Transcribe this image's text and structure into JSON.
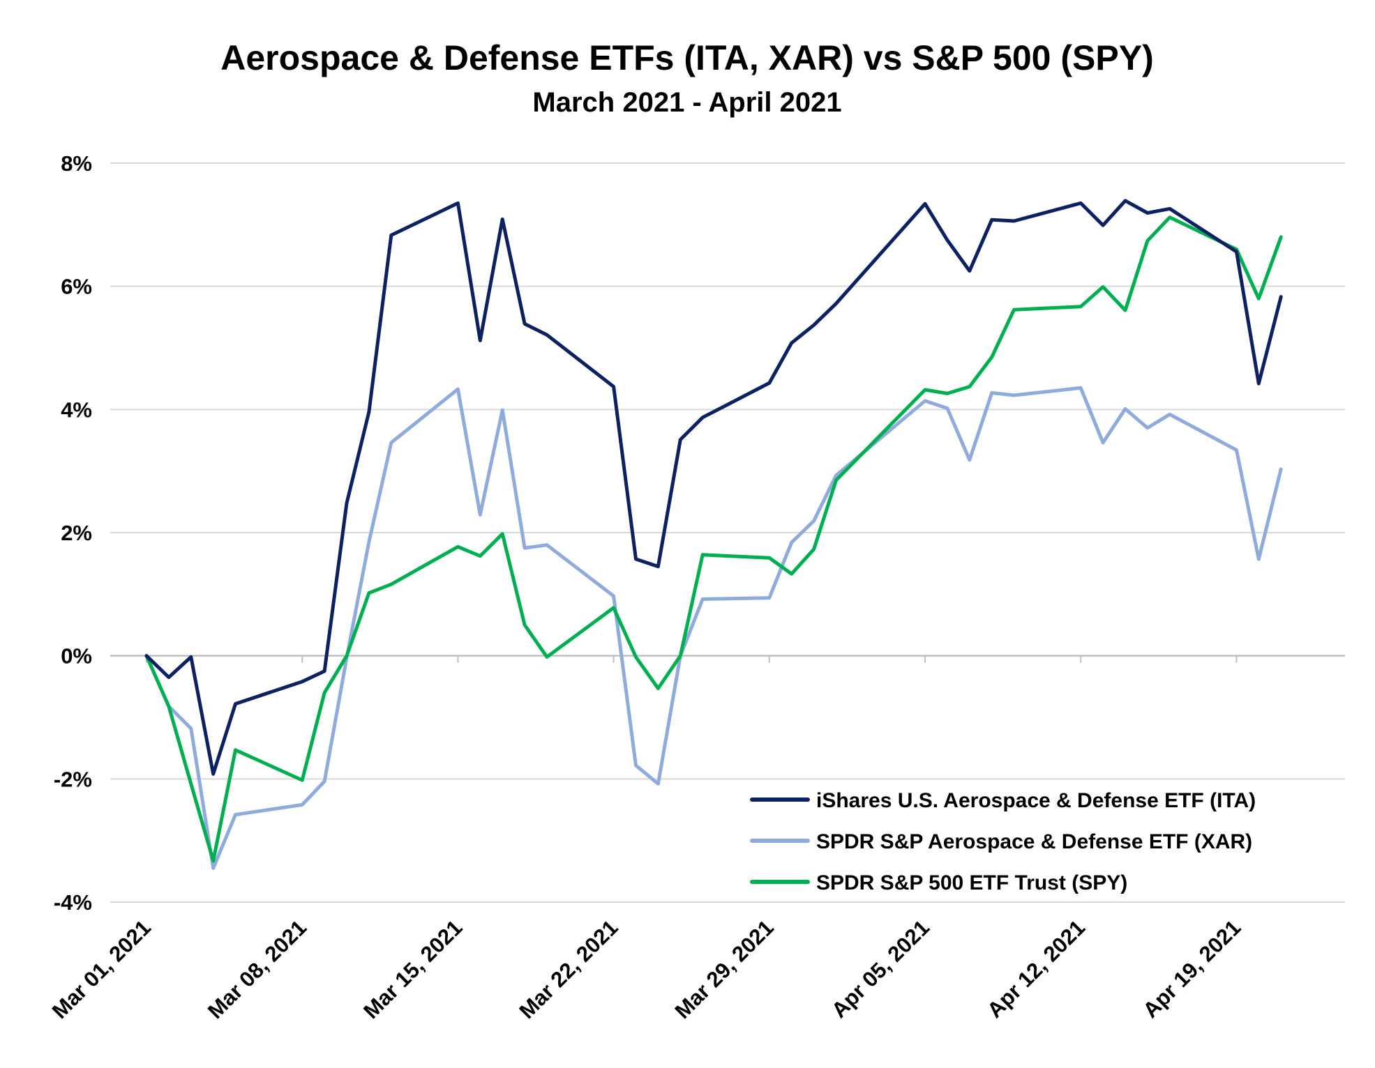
{
  "chart_data": {
    "type": "line",
    "title": "Aerospace & Defense ETFs (ITA, XAR) vs S&P 500 (SPY)",
    "subtitle": "March 2021 - April 2021",
    "xlabel": "",
    "ylabel": "",
    "ylim": [
      -4,
      8
    ],
    "yticks": [
      8,
      6,
      4,
      2,
      0,
      -2,
      -4
    ],
    "ytick_labels": [
      "8%",
      "6%",
      "4%",
      "2%",
      "0%",
      "-2%",
      "-4%"
    ],
    "x_range": [
      "2021-03-01",
      "2021-04-23"
    ],
    "x_tick_dates": [
      "2021-03-01",
      "2021-03-08",
      "2021-03-15",
      "2021-03-22",
      "2021-03-29",
      "2021-04-05",
      "2021-04-12",
      "2021-04-19"
    ],
    "x_tick_labels": [
      "Mar 01, 2021",
      "Mar 08, 2021",
      "Mar 15, 2021",
      "Mar 22, 2021",
      "Mar 29, 2021",
      "Apr 05, 2021",
      "Apr 12, 2021",
      "Apr 19, 2021"
    ],
    "grid": true,
    "legend_position": "bottom-right",
    "x": [
      "2021-03-01",
      "2021-03-02",
      "2021-03-03",
      "2021-03-04",
      "2021-03-05",
      "2021-03-08",
      "2021-03-09",
      "2021-03-10",
      "2021-03-11",
      "2021-03-12",
      "2021-03-15",
      "2021-03-16",
      "2021-03-17",
      "2021-03-18",
      "2021-03-19",
      "2021-03-22",
      "2021-03-23",
      "2021-03-24",
      "2021-03-25",
      "2021-03-26",
      "2021-03-29",
      "2021-03-30",
      "2021-03-31",
      "2021-04-01",
      "2021-04-05",
      "2021-04-06",
      "2021-04-07",
      "2021-04-08",
      "2021-04-09",
      "2021-04-12",
      "2021-04-13",
      "2021-04-14",
      "2021-04-15",
      "2021-04-16",
      "2021-04-19",
      "2021-04-20",
      "2021-04-21"
    ],
    "series": [
      {
        "name": "iShares U.S. Aerospace & Defense ETF (ITA)",
        "color": "#0b2161",
        "values": [
          0.0,
          -0.35,
          -0.02,
          -1.92,
          -0.78,
          -0.42,
          -0.25,
          2.48,
          3.96,
          6.83,
          7.35,
          5.12,
          7.09,
          5.39,
          5.21,
          4.37,
          1.57,
          1.45,
          3.51,
          3.87,
          4.43,
          5.08,
          5.37,
          5.72,
          7.34,
          6.75,
          6.25,
          7.08,
          7.06,
          7.35,
          6.99,
          7.39,
          7.19,
          7.26,
          6.56,
          4.42,
          5.83
        ]
      },
      {
        "name": "SPDR S&P Aerospace & Defense ETF (XAR)",
        "color": "#8faadc",
        "values": [
          0.0,
          -0.82,
          -1.18,
          -3.45,
          -2.58,
          -2.42,
          -2.04,
          -0.03,
          1.85,
          3.46,
          4.33,
          2.29,
          3.99,
          1.75,
          1.8,
          0.97,
          -1.78,
          -2.08,
          0.0,
          0.92,
          0.94,
          1.84,
          2.19,
          2.93,
          4.14,
          4.02,
          3.18,
          4.27,
          4.23,
          4.35,
          3.46,
          4.01,
          3.7,
          3.92,
          3.34,
          1.57,
          3.03
        ]
      },
      {
        "name": "SPDR S&P 500 ETF Trust (SPY)",
        "color": "#00b050",
        "values": [
          0.0,
          -0.82,
          -2.08,
          -3.33,
          -1.53,
          -2.02,
          -0.6,
          0.0,
          1.02,
          1.16,
          1.77,
          1.62,
          1.98,
          0.5,
          -0.02,
          0.78,
          -0.02,
          -0.53,
          0.0,
          1.64,
          1.59,
          1.33,
          1.73,
          2.85,
          4.32,
          4.26,
          4.37,
          4.85,
          5.62,
          5.67,
          5.99,
          5.61,
          6.74,
          7.12,
          6.6,
          5.8,
          6.8
        ]
      }
    ]
  }
}
